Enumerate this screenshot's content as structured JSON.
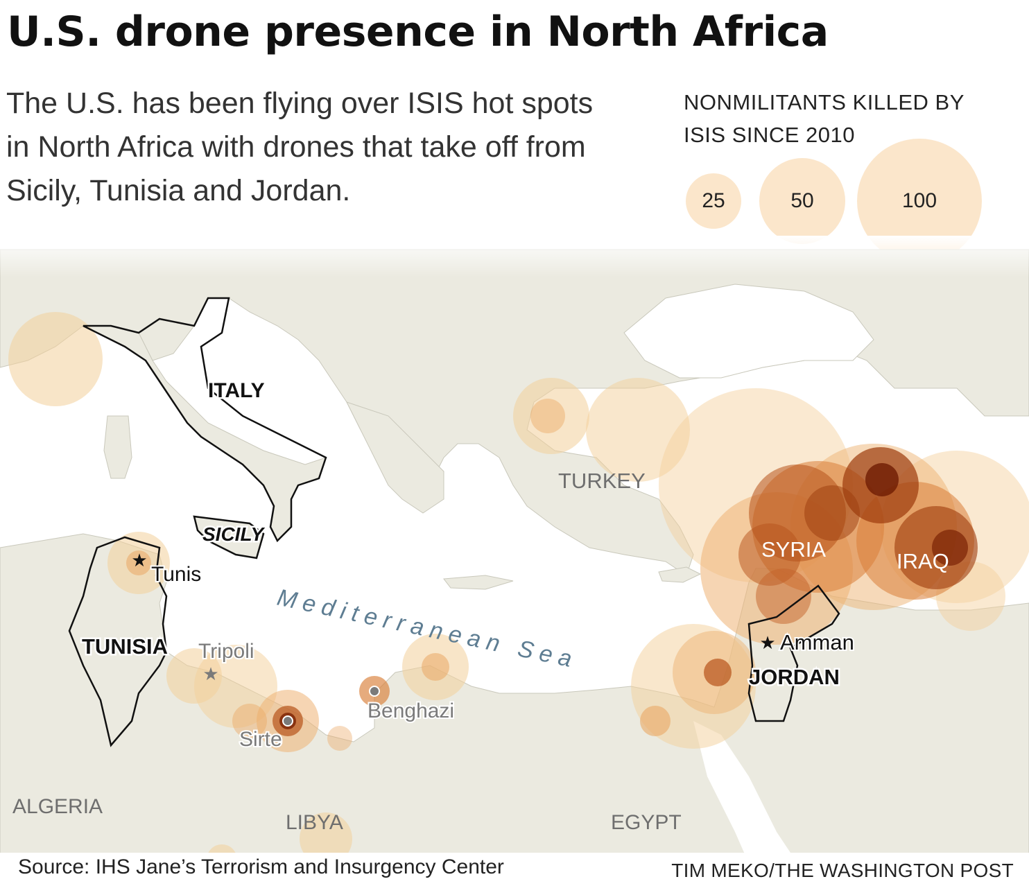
{
  "title": "U.S. drone presence in North Africa",
  "subtitle": "The U.S. has been flying over ISIS hot spots in North Africa with drones that take off from Sicily, Tunisia and Jordan.",
  "legend": {
    "title": "NONMILITANTS KILLED BY ISIS SINCE 2010",
    "sizes": [
      "25",
      "50",
      "100"
    ],
    "color": "#f3c98f"
  },
  "labels": {
    "italy": "ITALY",
    "sicily": "SICILY",
    "tunisia": "TUNISIA",
    "jordan": "JORDAN",
    "turkey": "TURKEY",
    "syria": "SYRIA",
    "iraq": "IRAQ",
    "algeria": "ALGERIA",
    "libya": "LIBYA",
    "egypt": "EGYPT",
    "sea": "Mediterranean Sea"
  },
  "cities": {
    "tunis": "Tunis",
    "tripoli": "Tripoli",
    "sirte": "Sirte",
    "benghazi": "Benghazi",
    "amman": "Amman"
  },
  "colors": {
    "land": "#ebeae0",
    "sea": "#ffffff",
    "bubble_light": "#f6d9ae",
    "bubble_dark": "#8a2a06",
    "sea_label": "#5e7d92"
  },
  "source": "Source:  IHS Jane’s Terrorism and Insurgency Center",
  "credit": "TIM MEKO/THE WASHINGTON POST"
}
